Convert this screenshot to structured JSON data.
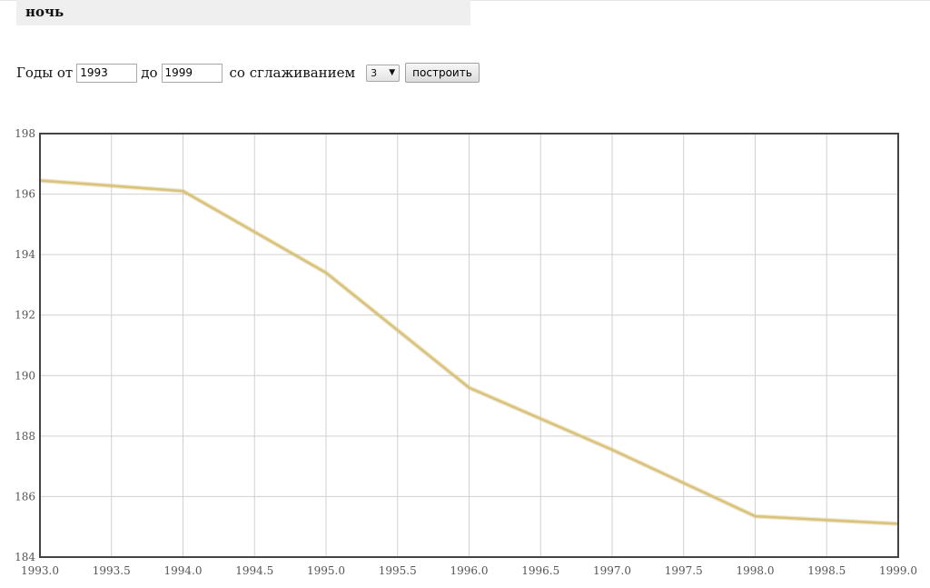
{
  "header": {
    "title": "ночь"
  },
  "form": {
    "years_from_label": "Годы от",
    "year_from": "1993",
    "to_label": "до",
    "year_to": "1999",
    "smoothing_label": "со сглаживанием",
    "smoothing_value": "3",
    "build_label": "построить"
  },
  "colors": {
    "line": "#d9c27a",
    "grid": "#d0d0d0",
    "frame": "#444444"
  },
  "chart_data": {
    "type": "line",
    "grid": true,
    "xlim": [
      1993.0,
      1999.0
    ],
    "ylim": [
      184,
      198
    ],
    "x_ticks": [
      "1993.0",
      "1993.5",
      "1994.0",
      "1994.5",
      "1995.0",
      "1995.5",
      "1996.0",
      "1996.5",
      "1997.0",
      "1997.5",
      "1998.0",
      "1998.5",
      "1999.0"
    ],
    "y_ticks": [
      "184",
      "186",
      "188",
      "190",
      "192",
      "194",
      "196",
      "198"
    ],
    "series": [
      {
        "x": [
          1993,
          1994,
          1995,
          1996,
          1997,
          1998,
          1999
        ],
        "y": [
          196.45,
          196.1,
          193.4,
          189.6,
          187.55,
          185.35,
          185.1
        ]
      }
    ]
  }
}
